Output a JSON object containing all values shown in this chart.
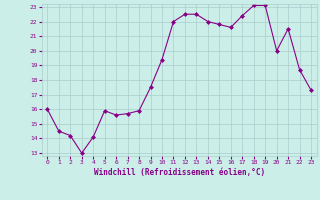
{
  "x": [
    0,
    1,
    2,
    3,
    4,
    5,
    6,
    7,
    8,
    9,
    10,
    11,
    12,
    13,
    14,
    15,
    16,
    17,
    18,
    19,
    20,
    21,
    22,
    23
  ],
  "y": [
    16.0,
    14.5,
    14.2,
    13.0,
    14.1,
    15.9,
    15.6,
    15.7,
    15.9,
    17.5,
    19.4,
    22.0,
    22.5,
    22.5,
    22.0,
    21.8,
    21.6,
    22.4,
    23.1,
    23.1,
    20.0,
    21.5,
    18.7,
    17.3
  ],
  "line_color": "#880088",
  "marker": "D",
  "marker_size": 2.0,
  "bg_color": "#cceee8",
  "grid_color": "#aacccc",
  "xlabel": "Windchill (Refroidissement éolien,°C)",
  "xlabel_color": "#880088",
  "tick_color": "#880088",
  "ylim": [
    13,
    23
  ],
  "xlim": [
    -0.5,
    23.5
  ],
  "yticks": [
    13,
    14,
    15,
    16,
    17,
    18,
    19,
    20,
    21,
    22,
    23
  ],
  "xticks": [
    0,
    1,
    2,
    3,
    4,
    5,
    6,
    7,
    8,
    9,
    10,
    11,
    12,
    13,
    14,
    15,
    16,
    17,
    18,
    19,
    20,
    21,
    22,
    23
  ]
}
